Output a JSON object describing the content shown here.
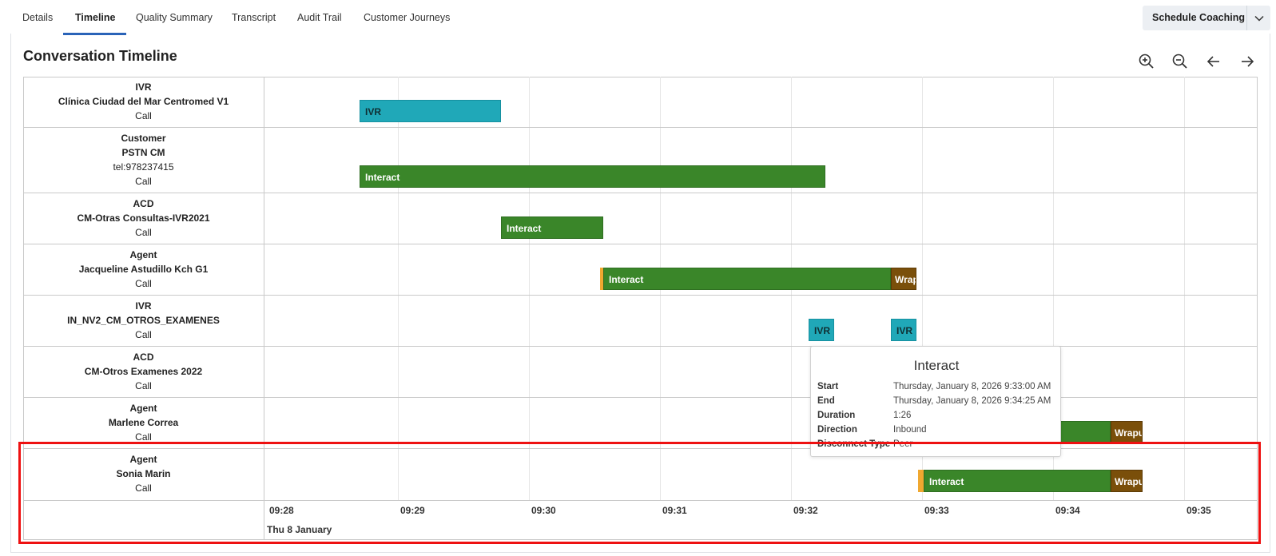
{
  "tabs": [
    {
      "label": "Details"
    },
    {
      "label": "Timeline"
    },
    {
      "label": "Quality Summary"
    },
    {
      "label": "Transcript"
    },
    {
      "label": "Audit Trail"
    },
    {
      "label": "Customer Journeys"
    }
  ],
  "schedule_button": {
    "label": "Schedule Coaching",
    "caret_icon": "chevron-down-icon"
  },
  "panel_title": "Conversation Timeline",
  "toolbar": {
    "icons": [
      "zoom-in-icon",
      "zoom-out-icon",
      "arrow-left-icon",
      "arrow-right-icon"
    ]
  },
  "rows": [
    {
      "role": "IVR",
      "name": "Clínica Ciudad del Mar Centromed V1",
      "type": "Call"
    },
    {
      "role": "Customer",
      "name": "PSTN CM",
      "detail": "tel:978237415",
      "type": "Call"
    },
    {
      "role": "ACD",
      "name": "CM-Otras Consultas-IVR2021",
      "type": "Call"
    },
    {
      "role": "Agent",
      "name": "Jacqueline Astudillo Kch G1",
      "type": "Call"
    },
    {
      "role": "IVR",
      "name": "IN_NV2_CM_OTROS_EXAMENES",
      "type": "Call"
    },
    {
      "role": "ACD",
      "name": "CM-Otros Examenes 2022",
      "type": "Call"
    },
    {
      "role": "Agent",
      "name": "Marlene Correa",
      "type": "Call"
    },
    {
      "role": "Agent",
      "name": "Sonia Marin",
      "type": "Call"
    }
  ],
  "segments": {
    "ivr1": "IVR",
    "interact_customer": "Interact",
    "interact_acd": "Interact",
    "interact_jacqueline": "Interact",
    "wrap_jacqueline": "Wrap",
    "ivr2a": "IVR",
    "ivr2b": "IVR",
    "wrap_marlene": "Wrapu",
    "interact_sonia": "Interact",
    "wrap_sonia": "Wrapu"
  },
  "time_axis": {
    "ticks": [
      "09:28",
      "09:29",
      "09:30",
      "09:31",
      "09:32",
      "09:33",
      "09:34",
      "09:35"
    ],
    "date": "Thu 8 January"
  },
  "tooltip": {
    "title": "Interact",
    "rows": [
      {
        "key": "Start",
        "value": "Thursday, January 8, 2026 9:33:00 AM"
      },
      {
        "key": "End",
        "value": "Thursday, January 8, 2026 9:34:25 AM"
      },
      {
        "key": "Duration",
        "value": "1:26"
      },
      {
        "key": "Direction",
        "value": "Inbound"
      },
      {
        "key": "Disconnect Type",
        "value": "Peer"
      }
    ]
  },
  "colors": {
    "ivr": "#20a8b8",
    "interact": "#3a8629",
    "wrapup": "#7a4f0a",
    "alert": "#f0a830",
    "highlight": "#ee1111",
    "tab_active": "#2a63b8"
  }
}
